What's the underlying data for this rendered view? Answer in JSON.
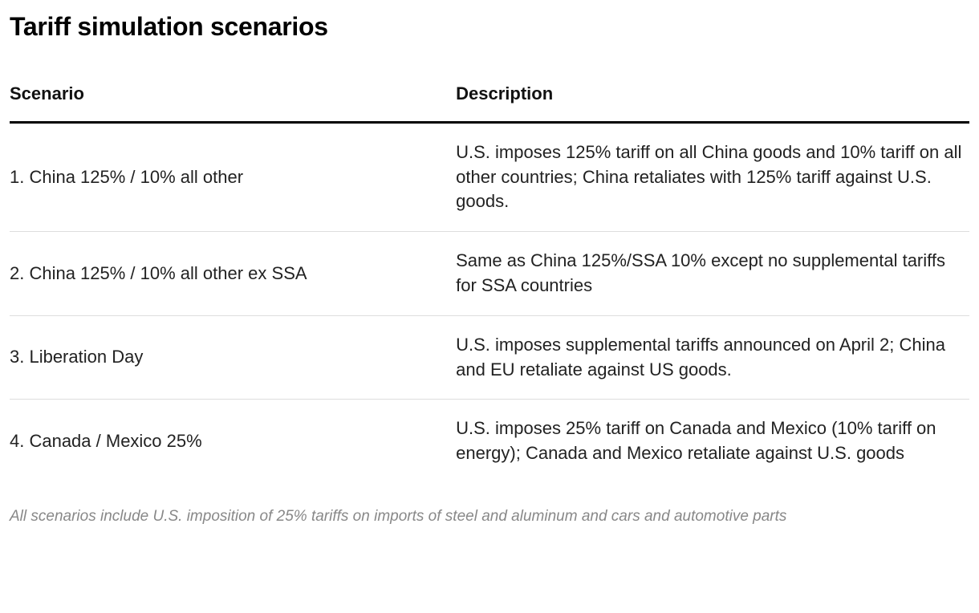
{
  "title": "Tariff simulation scenarios",
  "table": {
    "columns": [
      "Scenario",
      "Description"
    ],
    "rows": [
      {
        "scenario": "1. China 125% / 10% all other",
        "description": "U.S. imposes 125% tariff on all China goods and 10% tariff on all other countries; China retaliates with 125% tariff against U.S. goods."
      },
      {
        "scenario": "2. China 125% / 10% all other ex SSA",
        "description": "Same as China 125%/SSA 10% except no supplemental tariffs for SSA countries"
      },
      {
        "scenario": "3. Liberation Day",
        "description": "U.S. imposes supplemental tariffs announced on April 2; China and EU retaliate against US goods."
      },
      {
        "scenario": "4. Canada / Mexico 25%",
        "description": "U.S. imposes 25% tariff on Canada and Mexico (10% tariff on energy); Canada and Mexico retaliate against U.S. goods"
      }
    ]
  },
  "footnote": "All scenarios include U.S. imposition of 25% tariffs on imports of steel and aluminum and cars and automotive parts",
  "colors": {
    "background": "#ffffff",
    "title_text": "#000000",
    "body_text": "#222222",
    "footnote_text": "#888888",
    "header_rule": "#000000",
    "row_divider": "#dddddd"
  },
  "chart_data": {
    "type": "table",
    "title": "Tariff simulation scenarios",
    "columns": [
      "Scenario",
      "Description"
    ],
    "rows": [
      [
        "1. China 125% / 10% all other",
        "U.S. imposes 125% tariff on all China goods and 10% tariff on all other countries; China retaliates with 125% tariff against U.S. goods."
      ],
      [
        "2. China 125% / 10% all other ex SSA",
        "Same as China 125%/SSA 10% except no supplemental tariffs for SSA countries"
      ],
      [
        "3. Liberation Day",
        "U.S. imposes supplemental tariffs announced on April 2; China and EU retaliate against US goods."
      ],
      [
        "4. Canada / Mexico 25%",
        "U.S. imposes 25% tariff on Canada and Mexico (10% tariff on energy); Canada and Mexico retaliate against U.S. goods"
      ]
    ],
    "footnote": "All scenarios include U.S. imposition of 25% tariffs on imports of steel and aluminum and cars and automotive parts",
    "legend_position": "none",
    "grid": "row-dividers"
  }
}
